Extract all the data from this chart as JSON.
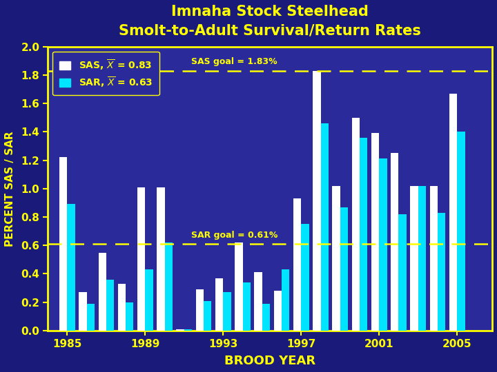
{
  "title_line1": "Imnaha Stock Steelhead",
  "title_line2": "Smolt-to-Adult Survival/Return Rates",
  "xlabel": "BROOD YEAR",
  "ylabel": "PERCENT SAS / SAR",
  "bg_color": "#1a1a7a",
  "plot_bg_color": "#2a2a9a",
  "title_color": "#ffff00",
  "tick_color": "#ffff00",
  "label_color": "#ffff00",
  "years": [
    1985,
    1986,
    1987,
    1988,
    1989,
    1990,
    1991,
    1992,
    1993,
    1994,
    1995,
    1996,
    1997,
    1998,
    1999,
    2000,
    2001,
    2002,
    2003,
    2004,
    2005
  ],
  "sas_values": [
    1.22,
    0.27,
    0.55,
    0.33,
    1.01,
    1.01,
    0.01,
    0.29,
    0.37,
    0.62,
    0.41,
    0.28,
    0.93,
    1.83,
    1.02,
    1.5,
    1.39,
    1.25,
    1.02,
    1.02,
    1.67
  ],
  "sar_values": [
    0.89,
    0.19,
    0.36,
    0.2,
    0.43,
    0.62,
    0.01,
    0.21,
    0.27,
    0.34,
    0.19,
    0.43,
    0.75,
    1.46,
    0.87,
    1.36,
    1.21,
    0.82,
    1.02,
    0.83,
    1.4
  ],
  "sas_color": "#ffffff",
  "sar_color": "#00e5ff",
  "sas_goal": 1.83,
  "sar_goal": 0.61,
  "goal_color": "#ffff00",
  "sas_mean": "0.83",
  "sar_mean": "0.63",
  "ylim": [
    0.0,
    2.0
  ],
  "ytick_vals": [
    0.0,
    0.2,
    0.4,
    0.6,
    0.8,
    1.0,
    1.2,
    1.4,
    1.6,
    1.8,
    2.0
  ],
  "ytick_labels": [
    "0.0",
    "0.2",
    "0.4",
    "0.6",
    "0.8",
    "1.0",
    "1.2",
    "1.4",
    "1.6",
    "1.8",
    "2.0"
  ],
  "xticks": [
    1985,
    1989,
    1993,
    1997,
    2001,
    2005
  ],
  "bar_width": 0.4,
  "spine_color": "#ffff00",
  "sas_goal_label": "SAS goal = 1.83%",
  "sar_goal_label": "SAR goal = 0.61%"
}
